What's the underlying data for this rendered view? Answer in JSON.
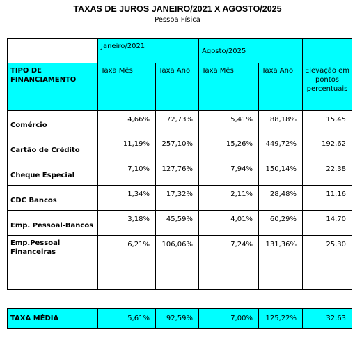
{
  "title": "TAXAS DE JUROS JANEIRO/2021 X  AGOSTO/2025",
  "subtitle": "Pessoa Física",
  "header": {
    "period1": "Janeiro/2021",
    "period2": "Agosto/2025",
    "tipo": "TIPO DE FINANCIAMENTO",
    "taxa_mes": "Taxa Mês",
    "taxa_ano": "Taxa Ano",
    "elevacao": "Elevação em pontos percentuais"
  },
  "rows": [
    {
      "label": "Comércio",
      "jan_mes": "4,66%",
      "jan_ano": "72,73%",
      "ago_mes": "5,41%",
      "ago_ano": "88,18%",
      "elev": "15,45"
    },
    {
      "label": "Cartão de Crédito",
      "jan_mes": "11,19%",
      "jan_ano": "257,10%",
      "ago_mes": "15,26%",
      "ago_ano": "449,72%",
      "elev": "192,62"
    },
    {
      "label": "Cheque Especial",
      "jan_mes": "7,10%",
      "jan_ano": "127,76%",
      "ago_mes": "7,94%",
      "ago_ano": "150,14%",
      "elev": "22,38"
    },
    {
      "label": "CDC Bancos",
      "jan_mes": "1,34%",
      "jan_ano": "17,32%",
      "ago_mes": "2,11%",
      "ago_ano": "28,48%",
      "elev": "11,16"
    },
    {
      "label": "Emp. Pessoal-Bancos",
      "jan_mes": "3,18%",
      "jan_ano": "45,59%",
      "ago_mes": "4,01%",
      "ago_ano": "60,29%",
      "elev": "14,70"
    },
    {
      "label": "Emp.Pessoal Financeiras",
      "jan_mes": "6,21%",
      "jan_ano": "106,06%",
      "ago_mes": "7,24%",
      "ago_ano": "131,36%",
      "elev": "25,30"
    }
  ],
  "average": {
    "label": "TAXA MÉDIA",
    "jan_mes": "5,61%",
    "jan_ano": "92,59%",
    "ago_mes": "7,00%",
    "ago_ano": "125,22%",
    "elev": "32,63"
  },
  "colors": {
    "header_fill": "#00ffff"
  }
}
